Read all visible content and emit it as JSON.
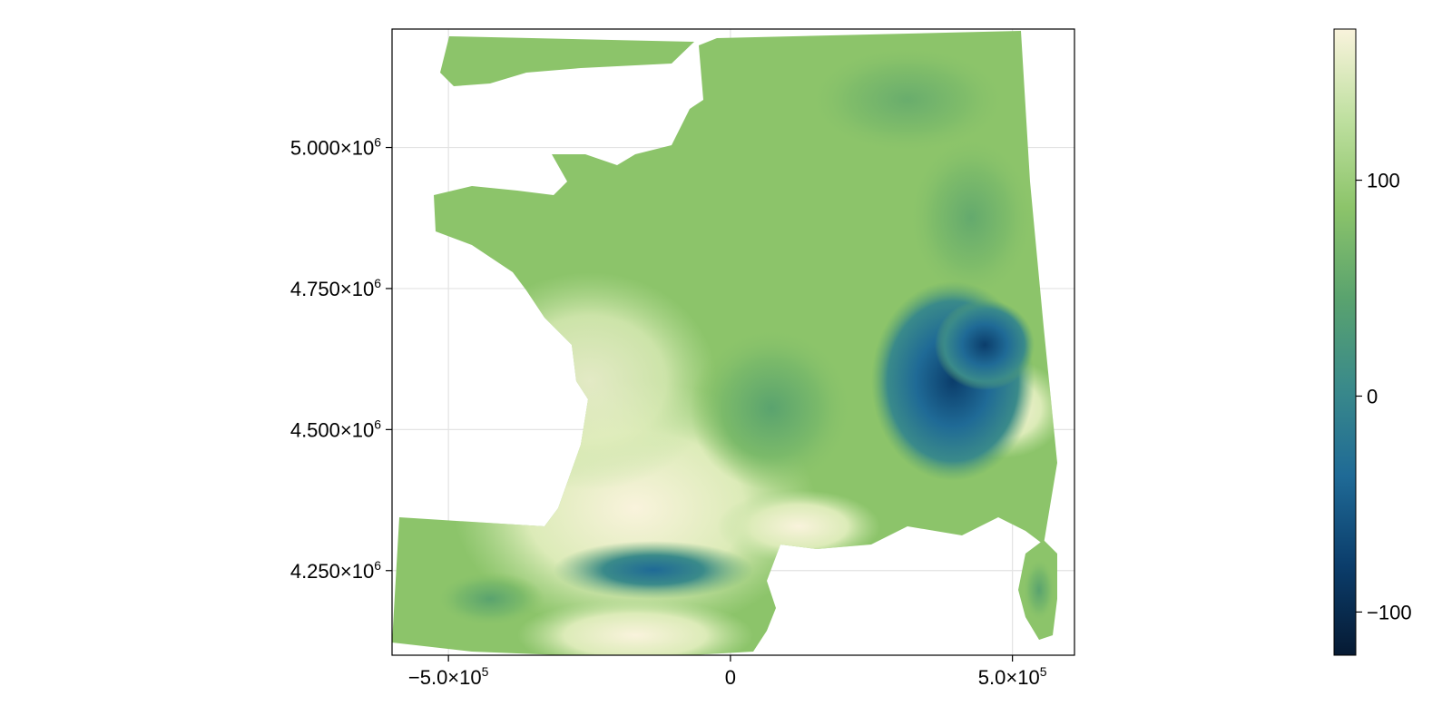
{
  "map": {
    "x_axis": {
      "range": [
        -600000,
        610000
      ],
      "ticks": [
        {
          "value": -500000,
          "mantissa": "−5.0×10",
          "exp": "5"
        },
        {
          "value": 0,
          "mantissa": "0",
          "exp": ""
        },
        {
          "value": 500000,
          "mantissa": "5.0×10",
          "exp": "5"
        }
      ]
    },
    "y_axis": {
      "range": [
        4100000,
        5210000
      ],
      "ticks": [
        {
          "value": 4250000,
          "mantissa": "4.250×10",
          "exp": "6"
        },
        {
          "value": 4500000,
          "mantissa": "4.500×10",
          "exp": "6"
        },
        {
          "value": 4750000,
          "mantissa": "4.750×10",
          "exp": "6"
        },
        {
          "value": 5000000,
          "mantissa": "5.000×10",
          "exp": "6"
        }
      ]
    },
    "grid": true,
    "colormap": [
      "#061a33",
      "#0b3d6b",
      "#1f6a96",
      "#3a8a8a",
      "#5aa36e",
      "#8cc46a",
      "#bfe0a0",
      "#f9f3dc"
    ],
    "colorbar": {
      "range": [
        -120,
        170
      ],
      "ticks": [
        {
          "value": 100,
          "label": "100"
        },
        {
          "value": 0,
          "label": "0"
        },
        {
          "value": -100,
          "label": "−100"
        }
      ]
    }
  }
}
